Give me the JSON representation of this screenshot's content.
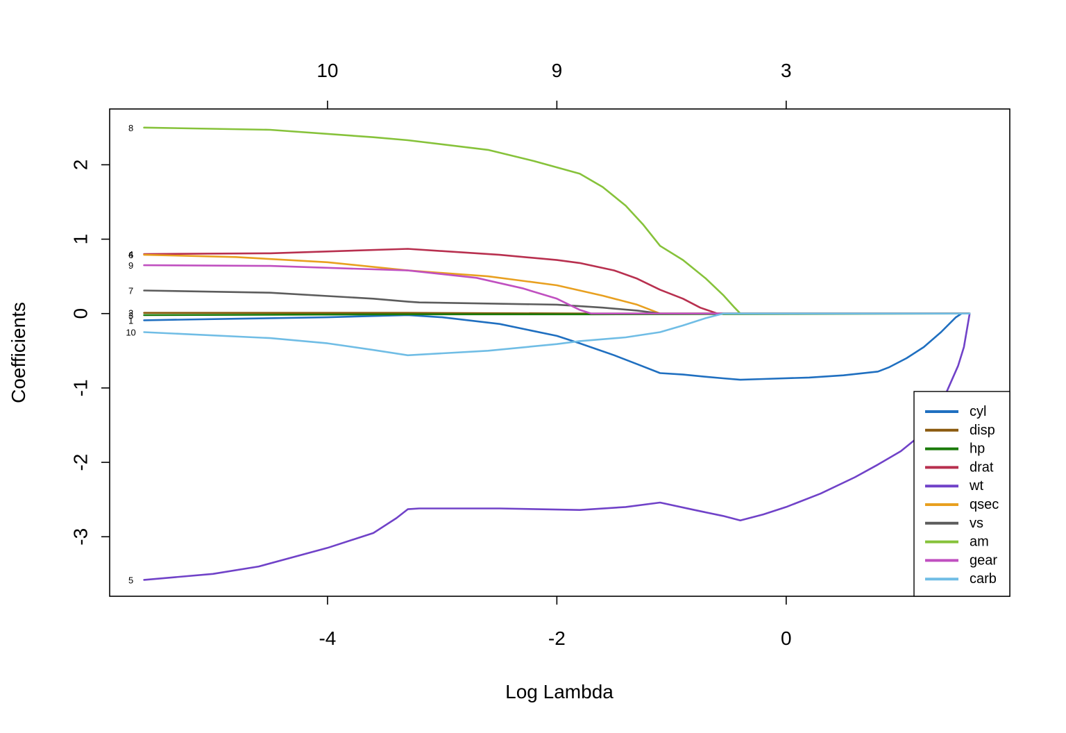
{
  "chart_data": {
    "type": "line",
    "title": "",
    "xlabel": "Log Lambda",
    "ylabel": "Coefficients",
    "xlim": [
      -5.9,
      1.95
    ],
    "ylim": [
      -3.8,
      2.75
    ],
    "x_ticks": [
      -4,
      -2,
      0
    ],
    "x_tick_labels": [
      "-4",
      "-2",
      "0"
    ],
    "y_ticks": [
      -3,
      -2,
      -1,
      0,
      1,
      2
    ],
    "y_tick_labels": [
      "-3",
      "-2",
      "-1",
      "0",
      "1",
      "2"
    ],
    "top_axis": {
      "ticks": [
        -4,
        -2,
        0
      ],
      "labels": [
        "10",
        "9",
        "3"
      ]
    },
    "grid": false,
    "legend_position": "bottom-right",
    "series": [
      {
        "name": "cyl",
        "color": "#1f6fc0",
        "label": "1",
        "points": [
          [
            -5.6,
            -0.09
          ],
          [
            -4.8,
            -0.07
          ],
          [
            -4.0,
            -0.05
          ],
          [
            -3.3,
            -0.02
          ],
          [
            -3.0,
            -0.05
          ],
          [
            -2.5,
            -0.14
          ],
          [
            -2.0,
            -0.3
          ],
          [
            -1.8,
            -0.4
          ],
          [
            -1.5,
            -0.56
          ],
          [
            -1.3,
            -0.68
          ],
          [
            -1.1,
            -0.8
          ],
          [
            -0.9,
            -0.82
          ],
          [
            -0.7,
            -0.85
          ],
          [
            -0.55,
            -0.87
          ],
          [
            -0.4,
            -0.89
          ],
          [
            -0.2,
            -0.88
          ],
          [
            0.2,
            -0.86
          ],
          [
            0.5,
            -0.83
          ],
          [
            0.8,
            -0.78
          ],
          [
            0.9,
            -0.72
          ],
          [
            1.05,
            -0.6
          ],
          [
            1.2,
            -0.45
          ],
          [
            1.35,
            -0.25
          ],
          [
            1.48,
            -0.05
          ],
          [
            1.53,
            0.0
          ],
          [
            1.6,
            0.0
          ]
        ]
      },
      {
        "name": "disp",
        "color": "#8b5a0f",
        "label": "2",
        "points": [
          [
            -5.6,
            0.01
          ],
          [
            -3.3,
            0.01
          ],
          [
            -1.7,
            0.0
          ],
          [
            1.6,
            0.0
          ]
        ]
      },
      {
        "name": "hp",
        "color": "#1a7a0a",
        "label": "3",
        "points": [
          [
            -5.6,
            -0.02
          ],
          [
            -3.3,
            -0.01
          ],
          [
            -1.7,
            -0.01
          ],
          [
            1.6,
            0.0
          ]
        ]
      },
      {
        "name": "drat",
        "color": "#b8304f",
        "label": "4",
        "points": [
          [
            -5.6,
            0.8
          ],
          [
            -4.5,
            0.81
          ],
          [
            -3.3,
            0.87
          ],
          [
            -2.5,
            0.79
          ],
          [
            -2.0,
            0.72
          ],
          [
            -1.8,
            0.68
          ],
          [
            -1.5,
            0.58
          ],
          [
            -1.3,
            0.47
          ],
          [
            -1.1,
            0.32
          ],
          [
            -0.9,
            0.2
          ],
          [
            -0.75,
            0.08
          ],
          [
            -0.6,
            0.0
          ],
          [
            1.6,
            0.0
          ]
        ]
      },
      {
        "name": "wt",
        "color": "#7042c8",
        "label": "5",
        "points": [
          [
            -5.6,
            -3.58
          ],
          [
            -5.0,
            -3.5
          ],
          [
            -4.6,
            -3.4
          ],
          [
            -4.0,
            -3.15
          ],
          [
            -3.6,
            -2.95
          ],
          [
            -3.4,
            -2.75
          ],
          [
            -3.3,
            -2.63
          ],
          [
            -3.2,
            -2.62
          ],
          [
            -2.5,
            -2.62
          ],
          [
            -1.8,
            -2.64
          ],
          [
            -1.4,
            -2.6
          ],
          [
            -1.1,
            -2.54
          ],
          [
            -0.8,
            -2.64
          ],
          [
            -0.55,
            -2.72
          ],
          [
            -0.4,
            -2.78
          ],
          [
            -0.2,
            -2.7
          ],
          [
            0.0,
            -2.6
          ],
          [
            0.3,
            -2.42
          ],
          [
            0.6,
            -2.2
          ],
          [
            0.8,
            -2.03
          ],
          [
            1.0,
            -1.85
          ],
          [
            1.2,
            -1.6
          ],
          [
            1.3,
            -1.35
          ],
          [
            1.4,
            -1.05
          ],
          [
            1.5,
            -0.7
          ],
          [
            1.55,
            -0.45
          ],
          [
            1.6,
            0.0
          ]
        ]
      },
      {
        "name": "qsec",
        "color": "#e8a020",
        "label": "6",
        "points": [
          [
            -5.6,
            0.79
          ],
          [
            -4.8,
            0.76
          ],
          [
            -4.0,
            0.69
          ],
          [
            -3.3,
            0.58
          ],
          [
            -2.6,
            0.5
          ],
          [
            -2.0,
            0.38
          ],
          [
            -1.6,
            0.24
          ],
          [
            -1.3,
            0.12
          ],
          [
            -1.1,
            0.0
          ],
          [
            1.6,
            0.0
          ]
        ]
      },
      {
        "name": "vs",
        "color": "#5c5c5c",
        "label": "7",
        "points": [
          [
            -5.6,
            0.31
          ],
          [
            -4.5,
            0.28
          ],
          [
            -3.6,
            0.2
          ],
          [
            -3.3,
            0.16
          ],
          [
            -3.2,
            0.15
          ],
          [
            -2.0,
            0.12
          ],
          [
            -1.6,
            0.08
          ],
          [
            -1.3,
            0.04
          ],
          [
            -1.1,
            0.0
          ],
          [
            1.6,
            0.0
          ]
        ]
      },
      {
        "name": "am",
        "color": "#86c23a",
        "label": "8",
        "points": [
          [
            -5.6,
            2.5
          ],
          [
            -4.5,
            2.47
          ],
          [
            -3.6,
            2.37
          ],
          [
            -3.3,
            2.33
          ],
          [
            -2.6,
            2.2
          ],
          [
            -2.2,
            2.05
          ],
          [
            -1.8,
            1.88
          ],
          [
            -1.6,
            1.7
          ],
          [
            -1.4,
            1.45
          ],
          [
            -1.25,
            1.2
          ],
          [
            -1.1,
            0.91
          ],
          [
            -0.9,
            0.72
          ],
          [
            -0.7,
            0.47
          ],
          [
            -0.55,
            0.25
          ],
          [
            -0.45,
            0.08
          ],
          [
            -0.4,
            0.0
          ],
          [
            1.6,
            0.0
          ]
        ]
      },
      {
        "name": "gear",
        "color": "#c050c0",
        "label": "9",
        "points": [
          [
            -5.6,
            0.65
          ],
          [
            -4.5,
            0.64
          ],
          [
            -3.3,
            0.58
          ],
          [
            -2.7,
            0.48
          ],
          [
            -2.3,
            0.34
          ],
          [
            -2.0,
            0.2
          ],
          [
            -1.8,
            0.05
          ],
          [
            -1.7,
            0.0
          ],
          [
            1.6,
            0.0
          ]
        ]
      },
      {
        "name": "carb",
        "color": "#70bde5",
        "label": "10",
        "points": [
          [
            -5.6,
            -0.25
          ],
          [
            -4.5,
            -0.33
          ],
          [
            -4.0,
            -0.4
          ],
          [
            -3.6,
            -0.49
          ],
          [
            -3.3,
            -0.56
          ],
          [
            -2.6,
            -0.5
          ],
          [
            -2.0,
            -0.41
          ],
          [
            -1.8,
            -0.37
          ],
          [
            -1.4,
            -0.32
          ],
          [
            -1.1,
            -0.25
          ],
          [
            -0.9,
            -0.16
          ],
          [
            -0.7,
            -0.06
          ],
          [
            -0.55,
            0.0
          ],
          [
            1.6,
            0.0
          ]
        ]
      }
    ]
  }
}
